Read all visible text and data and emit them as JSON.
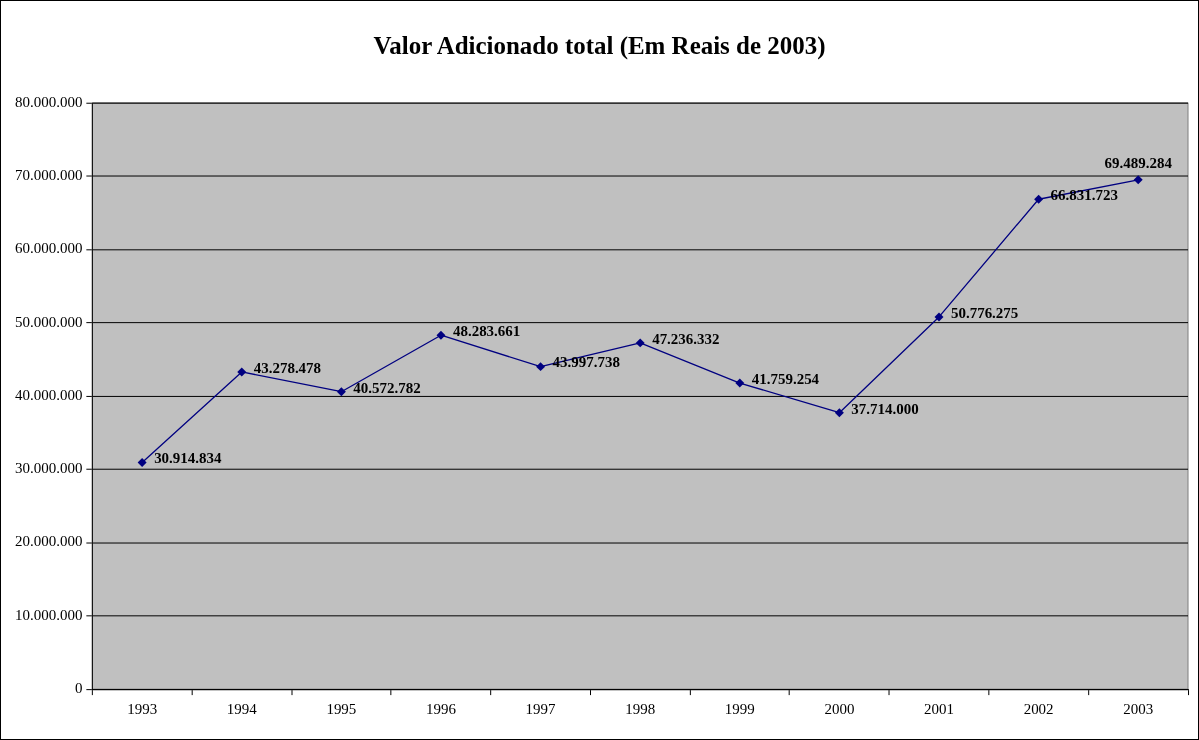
{
  "chart_data": {
    "type": "line",
    "title": "Valor Adicionado total (Em Reais de 2003)",
    "categories": [
      "1993",
      "1994",
      "1995",
      "1996",
      "1997",
      "1998",
      "1999",
      "2000",
      "2001",
      "2002",
      "2003"
    ],
    "series": [
      {
        "color": "#000080",
        "values": [
          30914834,
          43278478,
          40572782,
          48283661,
          43997738,
          47236332,
          41759254,
          37714000,
          50776275,
          66831723,
          69489284
        ],
        "value_labels": [
          "30.914.834",
          "43.278.478",
          "40.572.782",
          "48.283.661",
          "43.997.738",
          "47.236.332",
          "41.759.254",
          "37.714.000",
          "50.776.275",
          "66.831.723",
          "69.489.284"
        ]
      }
    ],
    "ylim": [
      0,
      80000000
    ],
    "yticks": [
      0,
      {
        "value": 10000000,
        "label": "10.000.000"
      },
      {
        "value": 20000000,
        "label": "20.000.000"
      },
      {
        "value": 30000000,
        "label": "30.000.000"
      },
      {
        "value": 40000000,
        "label": "40.000.000"
      },
      {
        "value": 50000000,
        "label": "50.000.000"
      },
      {
        "value": 60000000,
        "label": "60.000.000"
      },
      {
        "value": 70000000,
        "label": "70.000.000"
      },
      {
        "value": 80000000,
        "label": "80.000.000"
      }
    ],
    "grid": "y",
    "legend": false,
    "marker": "diamond",
    "line_style": "solid"
  }
}
